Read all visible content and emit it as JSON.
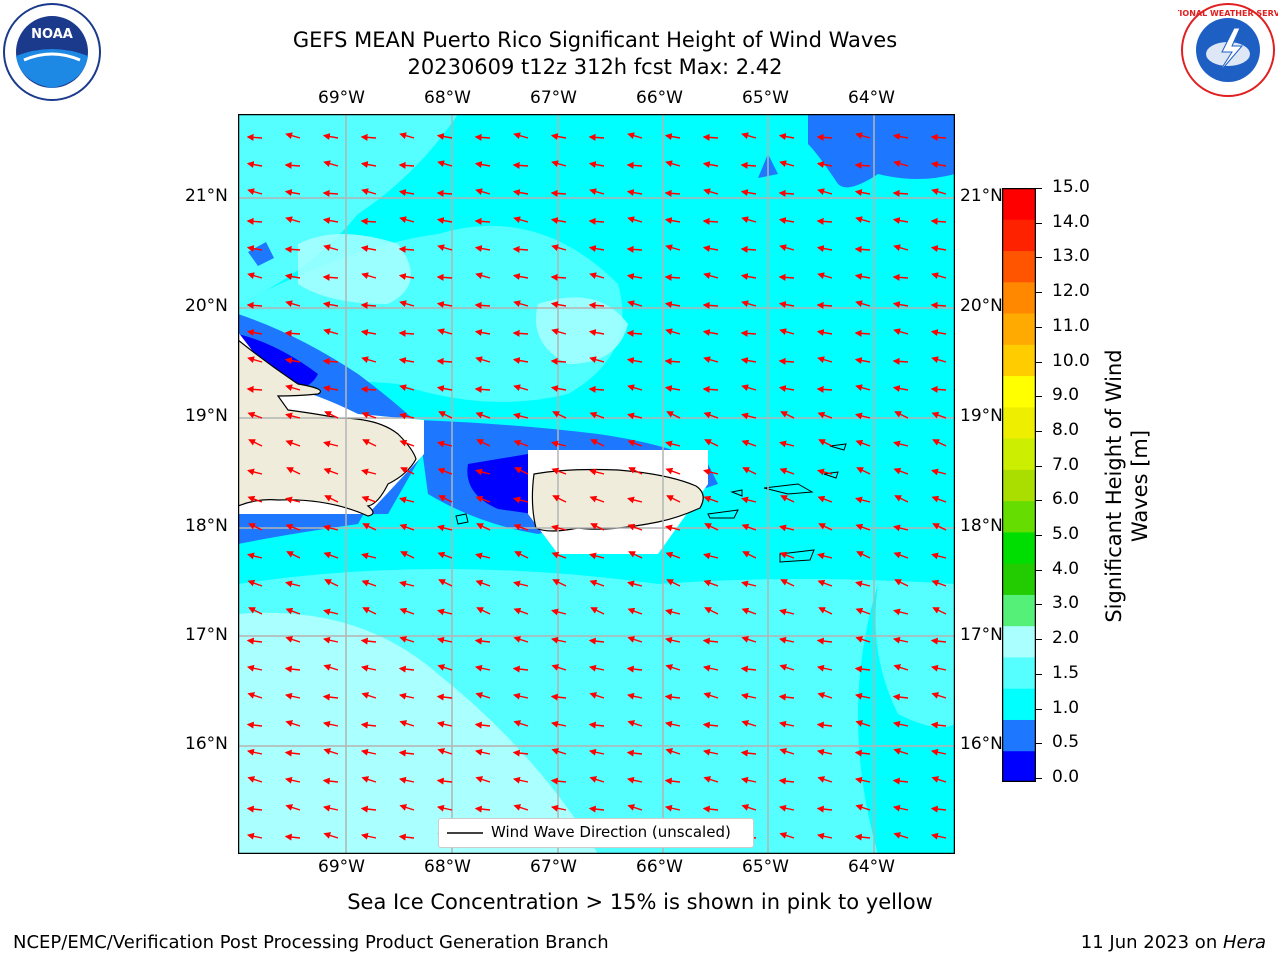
{
  "header": {
    "title_line1": "GEFS MEAN Puerto Rico Significant Height of Wind Waves",
    "title_line2": "20230609 t12z 312h fcst   Max: 2.42",
    "left_logo_text": "NOAA",
    "right_logo_text": "NATIONAL WEATHER SERVICE"
  },
  "map": {
    "lon_labels": [
      "69°W",
      "68°W",
      "67°W",
      "66°W",
      "65°W",
      "64°W"
    ],
    "lat_labels": [
      "21°N",
      "20°N",
      "19°N",
      "18°N",
      "17°N",
      "16°N"
    ],
    "legend_label": "Wind Wave Direction (unscaled)",
    "arrow_color": "#ff0000",
    "land_color": "#efecdc"
  },
  "colorbar": {
    "label": "Significant Height of Wind Waves [m]",
    "label_line1": "Significant Height of Wind",
    "label_line2": "Waves [m]",
    "ticks": [
      "15.0",
      "14.0",
      "13.0",
      "12.0",
      "11.0",
      "10.0",
      "9.0",
      "8.0",
      "7.0",
      "6.0",
      "5.0",
      "4.0",
      "3.0",
      "2.0",
      "1.5",
      "1.0",
      "0.5",
      "0.0"
    ],
    "colors_bottom_to_top": [
      "#0000ff",
      "#1e78ff",
      "#00ffff",
      "#55ffff",
      "#aaffff",
      "#55f077",
      "#22cc00",
      "#00dd00",
      "#66dd00",
      "#aadd00",
      "#ccee00",
      "#eeee00",
      "#ffff00",
      "#ffcc00",
      "#ffaa00",
      "#ff8800",
      "#ff5500",
      "#ff2200",
      "#ff0000"
    ]
  },
  "footer": {
    "subtitle": "Sea Ice Concentration > 15% is shown in pink to yellow",
    "left": "NCEP/EMC/Verification Post Processing Product Generation Branch",
    "right_prefix": "11 Jun 2023 on ",
    "right_italic": "Hera"
  }
}
